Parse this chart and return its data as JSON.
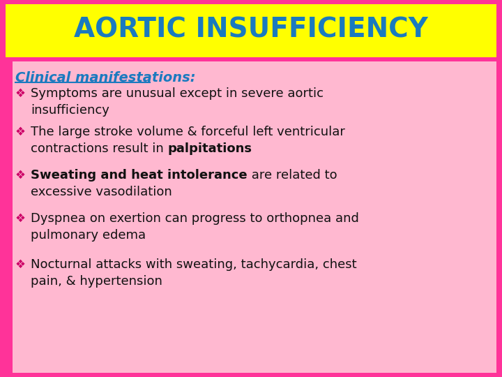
{
  "title": "AORTIC INSUFFICIENCY",
  "title_color": "#1a7abf",
  "title_bg": "#ffff00",
  "title_fontsize": 28,
  "body_bg": "#ffb6c1",
  "body_bg_light": "#ffccd5",
  "border_color": "#ff3399",
  "section_heading": "Clinical manifestations:",
  "section_heading_color": "#1a7abf",
  "section_heading_fontsize": 14,
  "bullet_color": "#cc0066",
  "bullet_symbol": "❖",
  "bullet_fontsize": 13,
  "text_color": "#111111",
  "bullets": [
    {
      "line1": "Symptoms are unusual except in severe aortic",
      "line2": "insufficiency",
      "parts1": [
        {
          "text": "Symptoms are unusual except in severe aortic",
          "bold": false
        }
      ],
      "parts2": [
        {
          "text": "insufficiency",
          "bold": false
        }
      ]
    },
    {
      "line1": "The large stroke volume & forceful left ventricular",
      "line2": "contractions result in palpitations",
      "parts1": [
        {
          "text": "The large stroke volume & forceful left ventricular",
          "bold": false
        }
      ],
      "parts2": [
        {
          "text": "contractions result in ",
          "bold": false
        },
        {
          "text": "palpitations",
          "bold": true
        }
      ]
    },
    {
      "line1": "Sweating and heat intolerance are related to",
      "line2": "excessive vasodilation",
      "parts1": [
        {
          "text": "Sweating and heat intolerance",
          "bold": true
        },
        {
          "text": " are related to",
          "bold": false
        }
      ],
      "parts2": [
        {
          "text": "excessive vasodilation",
          "bold": false
        }
      ]
    },
    {
      "line1": "Dyspnea on exertion can progress to orthopnea and",
      "line2": "pulmonary edema",
      "parts1": [
        {
          "text": "Dyspnea on exertion can progress to orthopnea and",
          "bold": false
        }
      ],
      "parts2": [
        {
          "text": "pulmonary edema",
          "bold": false
        }
      ]
    },
    {
      "line1": "Nocturnal attacks with sweating, tachycardia, chest",
      "line2": "pain, & hypertension",
      "parts1": [
        {
          "text": "Nocturnal attacks with sweating, tachycardia, chest",
          "bold": false
        }
      ],
      "parts2": [
        {
          "text": "pain, & hypertension",
          "bold": false
        }
      ]
    }
  ]
}
